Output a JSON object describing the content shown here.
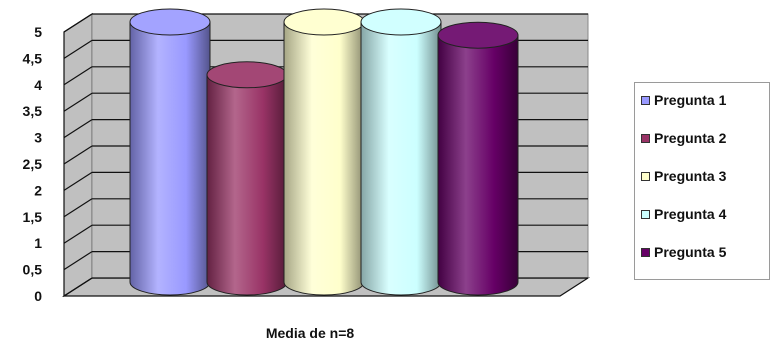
{
  "chart_data": {
    "type": "bar",
    "style": "3d-cylinder",
    "categories": [
      "Media de n=8"
    ],
    "xlabel": "Media de n=8",
    "ylim": [
      0,
      5
    ],
    "yticks": [
      "0",
      "0,5",
      "1",
      "1,5",
      "2",
      "2,5",
      "3",
      "3,5",
      "4",
      "4,5",
      "5"
    ],
    "grid": true,
    "legend_position": "right",
    "series": [
      {
        "name": "Pregunta 1",
        "value": 5.0,
        "color": "#9999ff"
      },
      {
        "name": "Pregunta 2",
        "value": 4.0,
        "color": "#993366"
      },
      {
        "name": "Pregunta 3",
        "value": 5.0,
        "color": "#ffffcc"
      },
      {
        "name": "Pregunta 4",
        "value": 5.0,
        "color": "#ccffff"
      },
      {
        "name": "Pregunta 5",
        "value": 4.75,
        "color": "#660066"
      }
    ]
  }
}
